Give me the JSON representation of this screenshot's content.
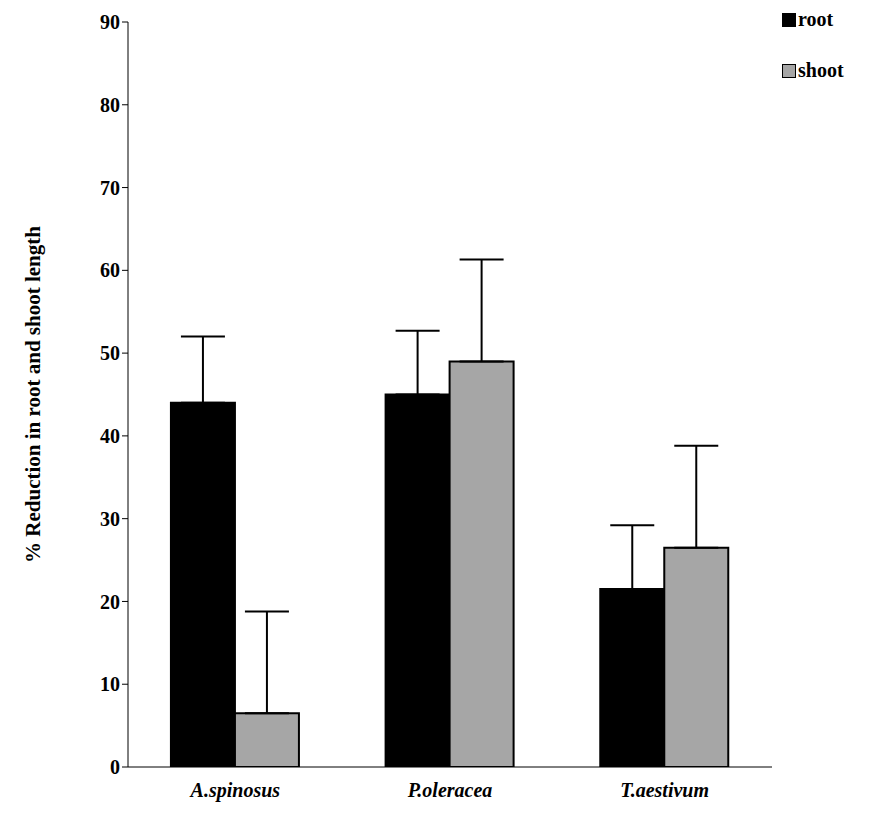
{
  "chart_data": {
    "type": "bar",
    "y_label": "% Reduction in root  and shoot length",
    "categories": [
      "A.spinosus",
      "P.oleracea",
      "T.aestivum"
    ],
    "series": [
      {
        "name": "root",
        "color": "#000000",
        "values": [
          44,
          45,
          21.5
        ],
        "errors": [
          8,
          7.7,
          7.7
        ]
      },
      {
        "name": "shoot",
        "color": "#a6a6a6",
        "values": [
          6.5,
          49,
          26.5
        ],
        "errors": [
          12.3,
          12.3,
          12.3
        ]
      }
    ],
    "ylim": [
      0,
      90
    ],
    "yticks": [
      0,
      10,
      20,
      30,
      40,
      50,
      60,
      70,
      80,
      90
    ],
    "grid": false,
    "legend": "top-right"
  }
}
